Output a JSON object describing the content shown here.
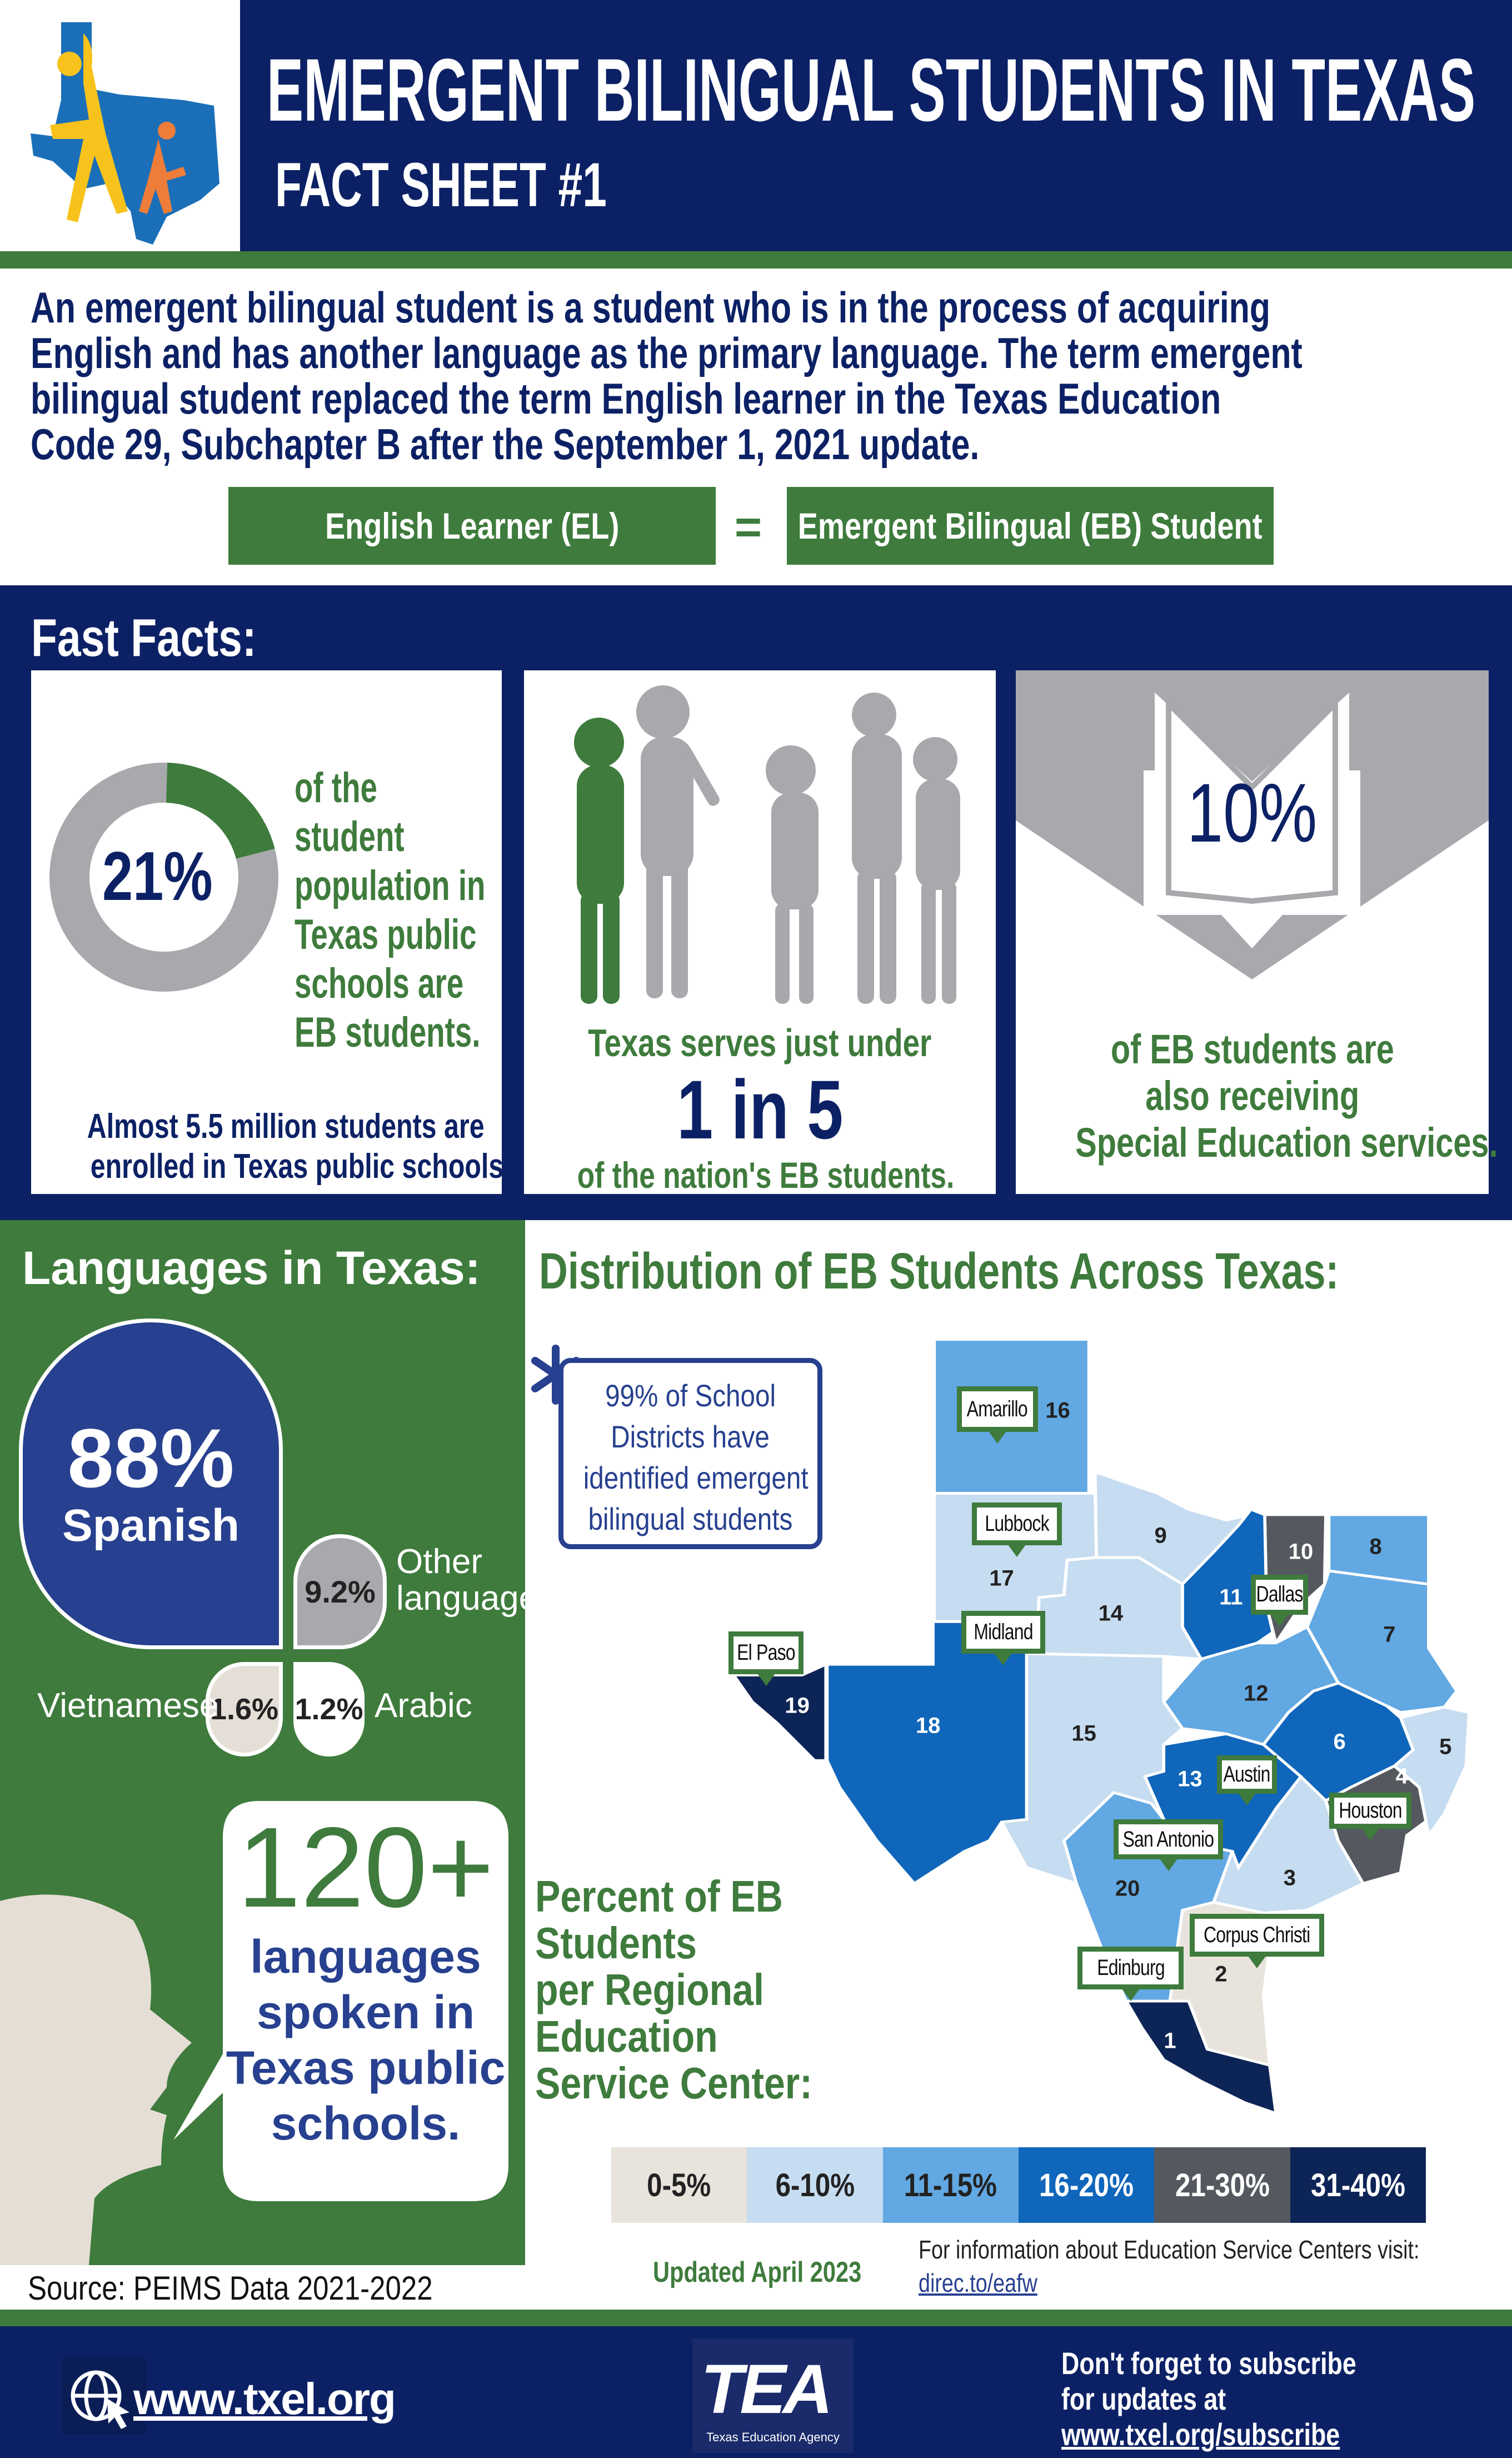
{
  "header": {
    "title": "EMERGENT BILINGUAL STUDENTS IN TEXAS",
    "subtitle": "FACT SHEET #1"
  },
  "intro": {
    "lines": [
      "An emergent bilingual student is a student who is in the process of acquiring",
      "English and has another language as the primary language. The term emergent",
      "bilingual student replaced the term English learner in the Texas Education",
      "Code 29, Subchapter B after the September 1, 2021 update."
    ]
  },
  "equivalence": {
    "left": "English Learner (EL)",
    "equals": "=",
    "right": "Emergent Bilingual (EB) Student"
  },
  "fast_facts": {
    "title": "Fast Facts:",
    "card1": {
      "percent": "21%",
      "percent_value": 21,
      "lines": [
        "of the",
        "student",
        "population in",
        "Texas public",
        "schools are",
        "EB students."
      ],
      "footer_lines": [
        "Almost 5.5 million students are",
        "enrolled in Texas public schools."
      ]
    },
    "card2": {
      "line1": "Texas serves just under",
      "big": "1 in 5",
      "line2": "of the nation's EB students."
    },
    "card3": {
      "percent": "10%",
      "lines": [
        "of EB students are",
        "also receiving",
        "Special Education services."
      ]
    }
  },
  "languages": {
    "title": "Languages in Texas:",
    "spanish": {
      "percent": "88%",
      "label": "Spanish"
    },
    "other": {
      "percent": "9.2%",
      "label_lines": [
        "Other",
        "languages"
      ]
    },
    "vietnamese": {
      "percent": "1.6%",
      "label": "Vietnamese"
    },
    "arabic": {
      "percent": "1.2%",
      "label": "Arabic"
    },
    "count": {
      "big": "120+",
      "lines": [
        "languages",
        "spoken in",
        "Texas public",
        "schools."
      ]
    }
  },
  "source": "Source: PEIMS Data 2021-2022",
  "distribution": {
    "title": "Distribution of EB Students Across Texas:",
    "callout_lines": [
      "99% of School",
      "Districts have",
      "identified emergent",
      "bilingual students"
    ],
    "percent_title_lines": [
      "Percent of EB",
      "Students",
      "per Regional",
      "Education",
      "Service Center:"
    ],
    "legend": [
      {
        "label": "0-5%",
        "color": "#e8e4dc",
        "text": "#222222"
      },
      {
        "label": "6-10%",
        "color": "#c6dcf0",
        "text": "#222222"
      },
      {
        "label": "11-15%",
        "color": "#62a8e2",
        "text": "#222222"
      },
      {
        "label": "16-20%",
        "color": "#0f66ba",
        "text": "#ffffff"
      },
      {
        "label": "21-30%",
        "color": "#55595f",
        "text": "#ffffff"
      },
      {
        "label": "31-40%",
        "color": "#0d2456",
        "text": "#ffffff"
      }
    ],
    "regions": [
      {
        "id": "1",
        "bin": "31-40%"
      },
      {
        "id": "2",
        "bin": "0-5%"
      },
      {
        "id": "3",
        "bin": "6-10%"
      },
      {
        "id": "4",
        "bin": "21-30%"
      },
      {
        "id": "5",
        "bin": "6-10%"
      },
      {
        "id": "6",
        "bin": "16-20%"
      },
      {
        "id": "7",
        "bin": "11-15%"
      },
      {
        "id": "8",
        "bin": "11-15%"
      },
      {
        "id": "9",
        "bin": "6-10%"
      },
      {
        "id": "10",
        "bin": "21-30%"
      },
      {
        "id": "11",
        "bin": "16-20%"
      },
      {
        "id": "12",
        "bin": "11-15%"
      },
      {
        "id": "13",
        "bin": "16-20%"
      },
      {
        "id": "14",
        "bin": "6-10%"
      },
      {
        "id": "15",
        "bin": "6-10%"
      },
      {
        "id": "16",
        "bin": "11-15%"
      },
      {
        "id": "17",
        "bin": "6-10%"
      },
      {
        "id": "18",
        "bin": "16-20%"
      },
      {
        "id": "19",
        "bin": "31-40%"
      },
      {
        "id": "20",
        "bin": "11-15%"
      }
    ],
    "cities": [
      "Amarillo",
      "Lubbock",
      "Midland",
      "El Paso",
      "Dallas",
      "Austin",
      "Houston",
      "San Antonio",
      "Corpus Christi",
      "Edinburg"
    ],
    "updated": "Updated April 2023",
    "info_text": "For information about Education Service Centers visit:",
    "info_link": "direc.to/eafw"
  },
  "footer": {
    "website": "www.txel.org",
    "logo_text": "TEA",
    "logo_subtext": "Texas Education Agency",
    "subscribe_lines": [
      "Don't forget to subscribe",
      "for updates at"
    ],
    "subscribe_link": "www.txel.org/subscribe"
  },
  "colors": {
    "navy": "#0c2165",
    "green": "#3e7b3c",
    "gray": "#a7a9ac",
    "spanish_blue": "#27408f"
  }
}
